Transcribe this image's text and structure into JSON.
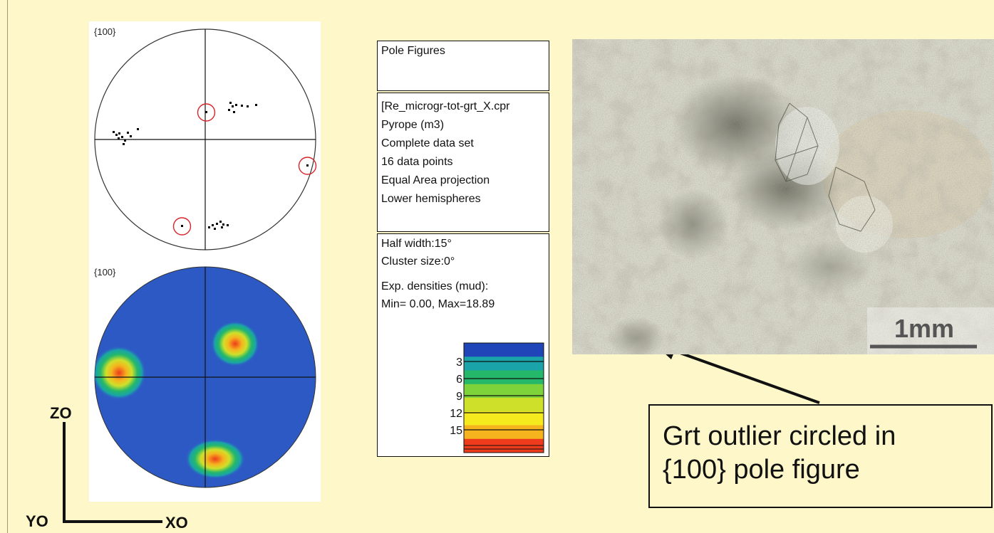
{
  "pole_figure_top": {
    "label": "{100}"
  },
  "pole_figure_bottom": {
    "label": "{100}"
  },
  "axes": {
    "z": "ZO",
    "y": "YO",
    "x": "XO"
  },
  "legend": {
    "title": "Pole Figures",
    "info": [
      "[Re_microgr-tot-grt_X.cpr",
      "Pyrope (m3)",
      "Complete data set",
      "16 data points",
      "Equal Area projection",
      "Lower hemispheres"
    ],
    "half_width": "Half width:15°",
    "cluster_size": "Cluster size:0°",
    "densities_title": "Exp. densities (mud):",
    "densities_range": "Min= 0.00, Max=18.89",
    "colorbar_ticks": [
      "3",
      "6",
      "9",
      "12",
      "15"
    ],
    "colorbar_colors": [
      "#1f45b8",
      "#1aa3a8",
      "#25b86a",
      "#7ed23a",
      "#cfe02a",
      "#f5ea1e",
      "#f5b41e",
      "#ee3b1c"
    ]
  },
  "scale_bar": {
    "label": "1mm"
  },
  "callout": {
    "line1": "Grt outlier circled in",
    "line2": "{100} pole figure"
  },
  "colors": {
    "background": "#fdf7c9",
    "outlier_circle": "#d9262b",
    "density_base": "#2d59c4"
  }
}
